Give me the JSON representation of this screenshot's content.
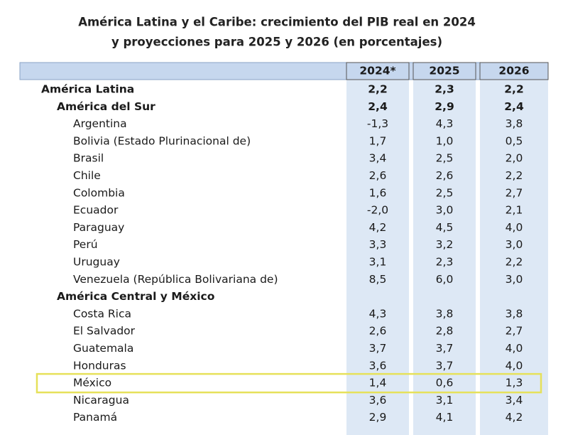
{
  "title": [
    "América Latina y el Caribe: crecimiento del PIB real en 2024",
    "y proyecciones para 2025 y 2026 (en porcentajes)"
  ],
  "table": {
    "header": [
      "2024*",
      "2025",
      "2026"
    ],
    "region": {
      "name": "América Latina",
      "values": [
        "2,2",
        "2,3",
        "2,2"
      ],
      "subregions": [
        {
          "name": "América del Sur",
          "values": [
            "2,4",
            "2,9",
            "2,4"
          ],
          "countries": [
            {
              "name": "Argentina",
              "values": [
                "-1,3",
                "4,3",
                "3,8"
              ]
            },
            {
              "name": "Bolivia (Estado Plurinacional de)",
              "values": [
                "1,7",
                "1,0",
                "0,5"
              ]
            },
            {
              "name": "Brasil",
              "values": [
                "3,4",
                "2,5",
                "2,0"
              ]
            },
            {
              "name": "Chile",
              "values": [
                "2,6",
                "2,6",
                "2,2"
              ]
            },
            {
              "name": "Colombia",
              "values": [
                "1,6",
                "2,5",
                "2,7"
              ]
            },
            {
              "name": "Ecuador",
              "values": [
                "-2,0",
                "3,0",
                "2,1"
              ]
            },
            {
              "name": "Paraguay",
              "values": [
                "4,2",
                "4,5",
                "4,0"
              ]
            },
            {
              "name": "Perú",
              "values": [
                "3,3",
                "3,2",
                "3,0"
              ]
            },
            {
              "name": "Uruguay",
              "values": [
                "3,1",
                "2,3",
                "2,2"
              ]
            },
            {
              "name": "Venezuela (República Bolivariana de)",
              "values": [
                "8,5",
                "6,0",
                "3,0"
              ]
            }
          ]
        },
        {
          "name": "América Central y México",
          "countries": [
            {
              "name": "Costa Rica",
              "values": [
                "4,3",
                "3,8",
                "3,8"
              ]
            },
            {
              "name": "El Salvador",
              "values": [
                "2,6",
                "2,8",
                "2,7"
              ]
            },
            {
              "name": "Guatemala",
              "values": [
                "3,7",
                "3,7",
                "4,0"
              ]
            },
            {
              "name": "Honduras",
              "values": [
                "3,6",
                "3,7",
                "4,0"
              ]
            },
            {
              "name": "México",
              "values": [
                "1,4",
                "0,6",
                "1,3"
              ],
              "highlight": true
            },
            {
              "name": "Nicaragua",
              "values": [
                "3,6",
                "3,1",
                "3,4"
              ]
            },
            {
              "name": "Panamá",
              "values": [
                "2,9",
                "4,1",
                "4,2"
              ]
            }
          ]
        }
      ]
    }
  }
}
